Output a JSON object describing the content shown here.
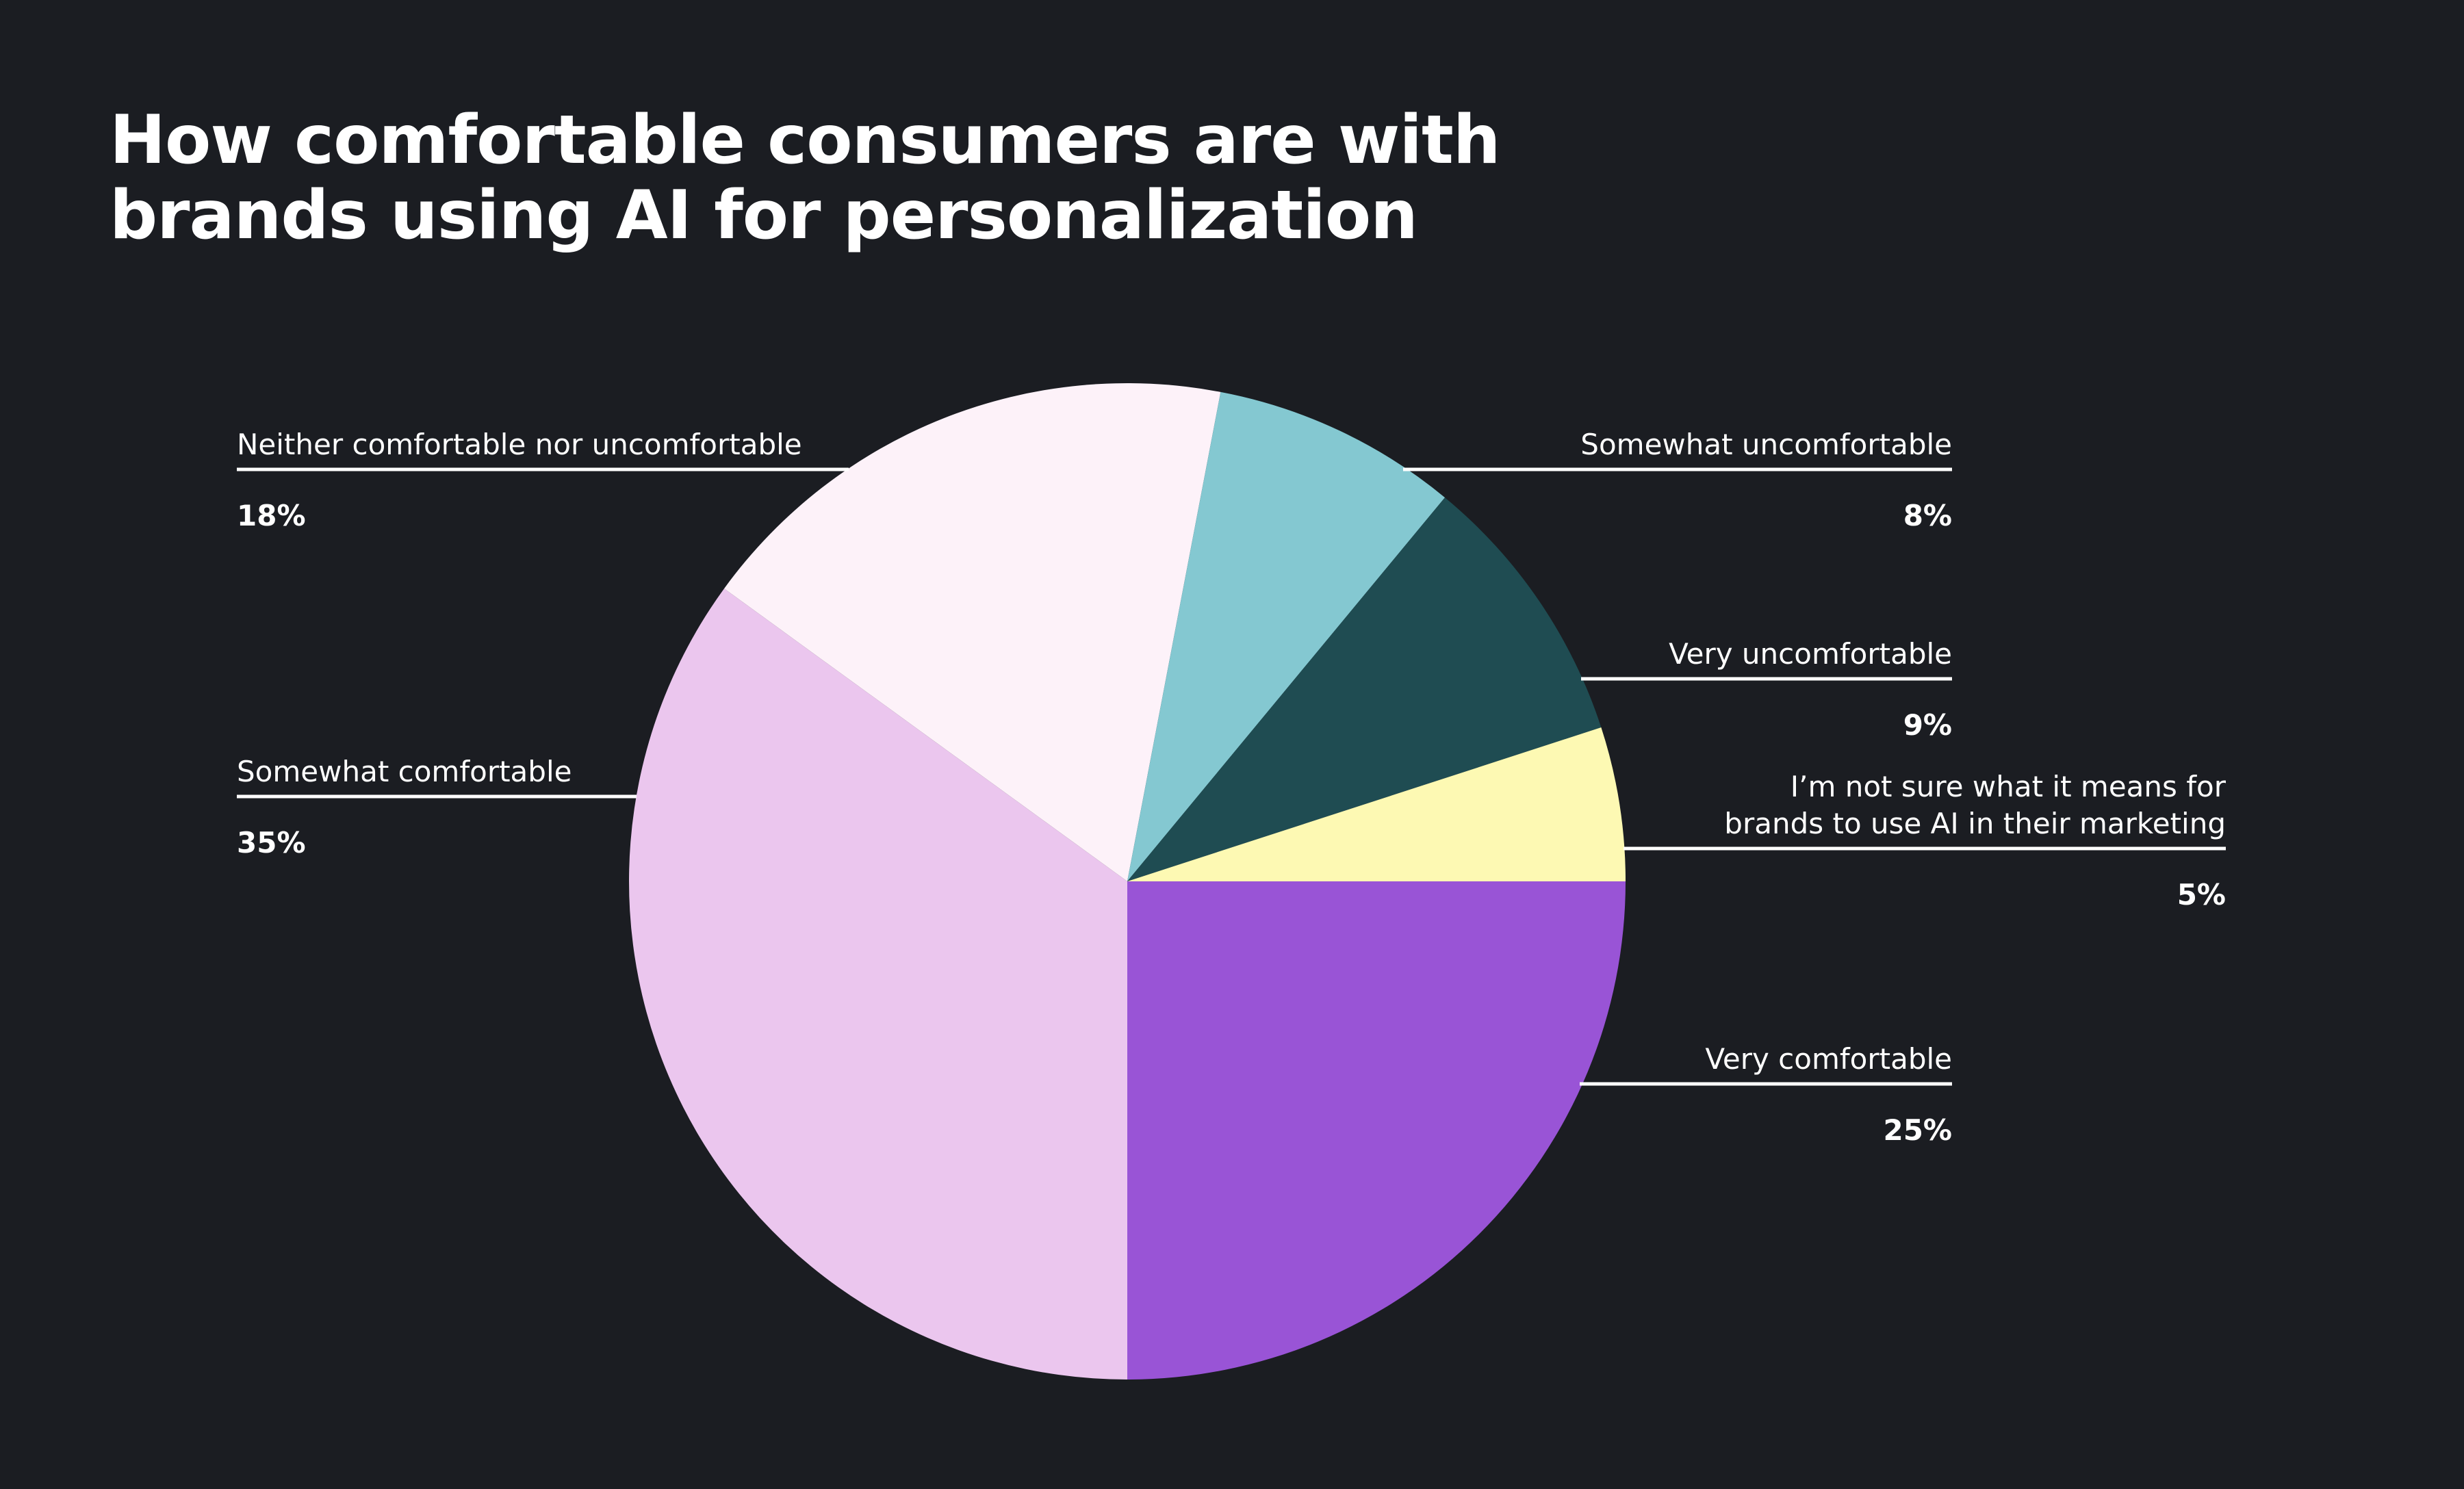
{
  "chart_data": {
    "type": "pie",
    "title_lines": [
      "How comfortable consumers are with",
      "brands using AI for personalization"
    ],
    "start": "3 o'clock, clockwise",
    "slices": [
      {
        "label": "Very comfortable",
        "label_lines": [
          "Very comfortable"
        ],
        "value": 25,
        "value_label": "25%",
        "color": "#9954d6",
        "side": "right"
      },
      {
        "label": "Somewhat comfortable",
        "label_lines": [
          "Somewhat comfortable"
        ],
        "value": 35,
        "value_label": "35%",
        "color": "#ebc6ee",
        "side": "left"
      },
      {
        "label": "Neither comfortable nor uncomfortable",
        "label_lines": [
          "Neither comfortable nor uncomfortable"
        ],
        "value": 18,
        "value_label": "18%",
        "color": "#fdf2f9",
        "side": "left"
      },
      {
        "label": "Somewhat uncomfortable",
        "label_lines": [
          "Somewhat uncomfortable"
        ],
        "value": 8,
        "value_label": "8%",
        "color": "#84c8d1",
        "side": "right"
      },
      {
        "label": "Very uncomfortable",
        "label_lines": [
          "Very uncomfortable"
        ],
        "value": 9,
        "value_label": "9%",
        "color": "#1f4c52",
        "side": "right"
      },
      {
        "label": "I’m not sure what it means for brands to use AI in their marketing",
        "label_lines": [
          "I’m not sure what it means for",
          "brands to use AI in their marketing"
        ],
        "value": 5,
        "value_label": "5%",
        "color": "#fdf9b3",
        "side": "right"
      }
    ],
    "legend": "none",
    "grid": false
  }
}
